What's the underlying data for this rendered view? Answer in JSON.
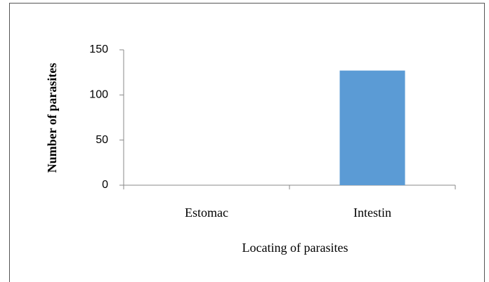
{
  "chart_data": {
    "type": "bar",
    "categories": [
      "Estomac",
      "Intestin"
    ],
    "values": [
      0,
      127
    ],
    "color": "#5b9bd5",
    "xlabel": "Locating of parasites",
    "ylabel": "Number of parasites",
    "ylim": [
      0,
      150
    ],
    "yticks": [
      0,
      50,
      100,
      150
    ],
    "grid": false
  }
}
